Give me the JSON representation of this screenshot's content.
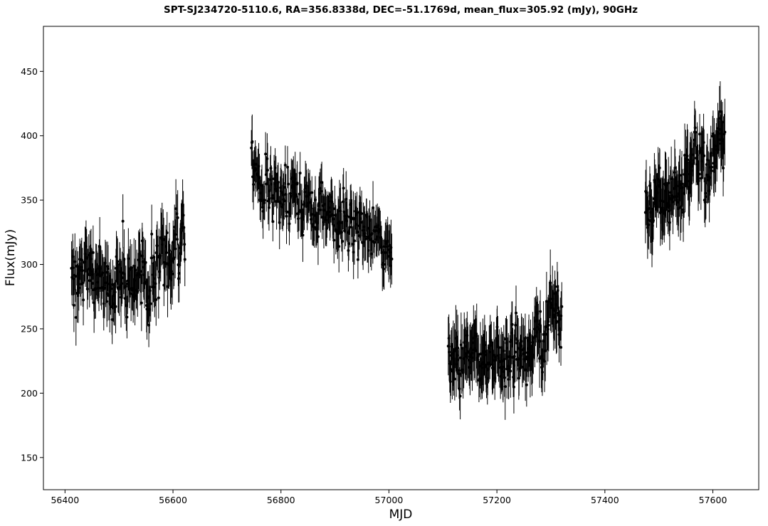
{
  "chart_data": {
    "type": "scatter",
    "title": "SPT-SJ234720-5110.6, RA=356.8338d, DEC=-51.1769d, mean_flux=305.92 (mJy), 90GHz",
    "xlabel": "MJD",
    "ylabel": "Flux(mJy)",
    "xlim": [
      56360,
      57685
    ],
    "ylim": [
      125,
      485
    ],
    "xticks": [
      56400,
      56600,
      56800,
      57000,
      57200,
      57400,
      57600
    ],
    "yticks": [
      150,
      200,
      250,
      300,
      350,
      400,
      450
    ],
    "grid": false,
    "legend": "none",
    "marker_color": "#000000",
    "error_bars": true,
    "segments": [
      {
        "x_start": 56412,
        "x_end": 56622,
        "points": 220,
        "trend": [
          [
            0,
            285
          ],
          [
            0.25,
            292
          ],
          [
            0.5,
            290
          ],
          [
            0.75,
            293
          ],
          [
            1,
            318
          ]
        ],
        "scatter": 22,
        "err_min": 14,
        "err_max": 24
      },
      {
        "x_start": 56745,
        "x_end": 57005,
        "points": 260,
        "trend": [
          [
            0,
            385
          ],
          [
            0.15,
            355
          ],
          [
            0.5,
            343
          ],
          [
            0.8,
            330
          ],
          [
            1,
            310
          ]
        ],
        "scatter": 18,
        "err_min": 12,
        "err_max": 22
      },
      {
        "x_start": 57110,
        "x_end": 57320,
        "points": 230,
        "trend": [
          [
            0,
            230
          ],
          [
            0.3,
            228
          ],
          [
            0.6,
            222
          ],
          [
            0.85,
            250
          ],
          [
            1,
            262
          ]
        ],
        "scatter": 20,
        "err_min": 14,
        "err_max": 26
      },
      {
        "x_start": 57475,
        "x_end": 57622,
        "points": 170,
        "trend": [
          [
            0,
            340
          ],
          [
            0.4,
            358
          ],
          [
            0.7,
            372
          ],
          [
            1,
            392
          ]
        ],
        "scatter": 22,
        "err_min": 14,
        "err_max": 26
      }
    ]
  }
}
